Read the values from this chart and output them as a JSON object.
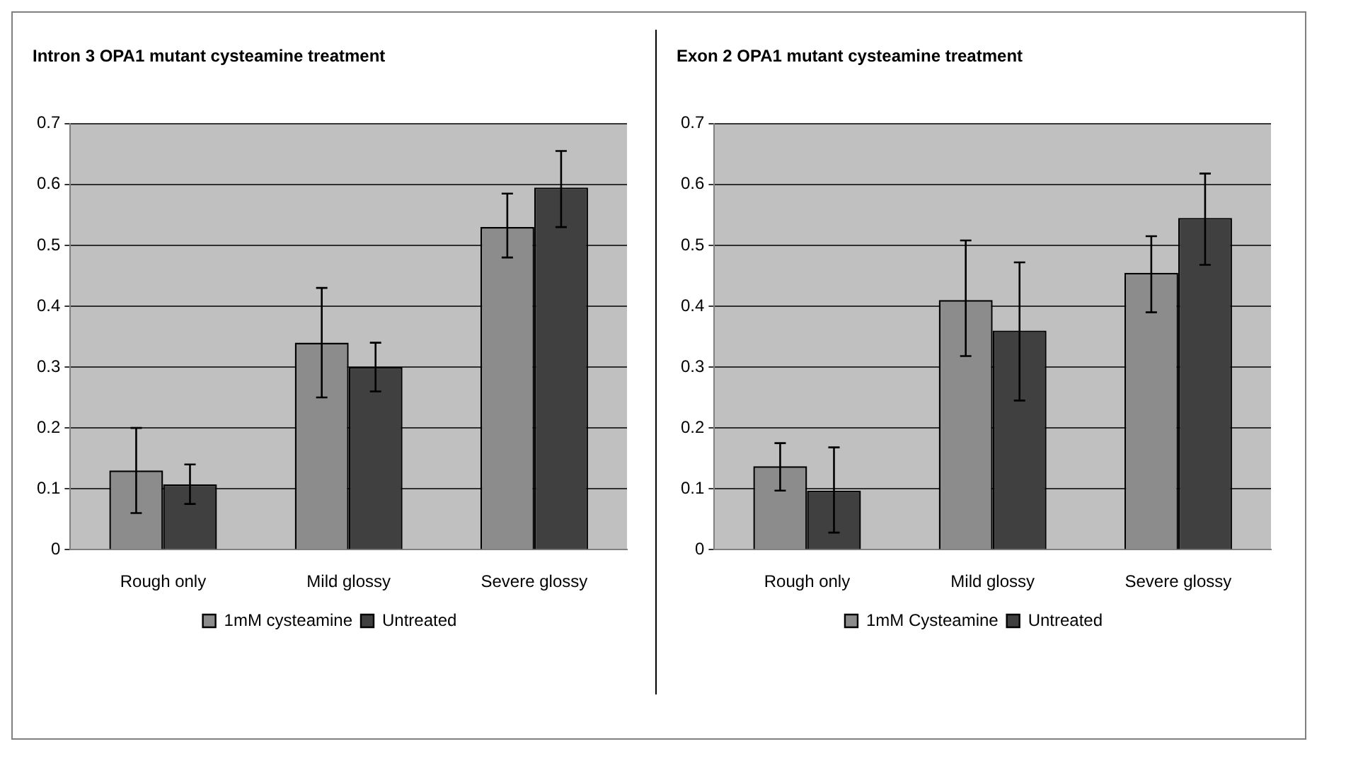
{
  "chart_data": [
    {
      "type": "bar",
      "title": "Intron 3 OPA1 mutant cysteamine treatment",
      "categories": [
        "Rough only",
        "Mild glossy",
        "Severe glossy"
      ],
      "series": [
        {
          "name": "1mM cysteamine",
          "color": "#8c8c8c",
          "values": [
            0.13,
            0.34,
            0.53
          ],
          "errors": [
            [
              0.06,
              0.2
            ],
            [
              0.25,
              0.43
            ],
            [
              0.48,
              0.585
            ]
          ]
        },
        {
          "name": "Untreated",
          "color": "#404040",
          "values": [
            0.107,
            0.3,
            0.595
          ],
          "errors": [
            [
              0.075,
              0.14
            ],
            [
              0.26,
              0.34
            ],
            [
              0.53,
              0.655
            ]
          ]
        }
      ],
      "ylim": [
        0,
        0.7
      ],
      "yticks": [
        0,
        0.1,
        0.2,
        0.3,
        0.4,
        0.5,
        0.6,
        0.7
      ],
      "grid": "y",
      "legend": "bottom"
    },
    {
      "type": "bar",
      "title": "Exon 2 OPA1 mutant cysteamine treatment",
      "categories": [
        "Rough only",
        "Mild glossy",
        "Severe glossy"
      ],
      "series": [
        {
          "name": "1mM Cysteamine",
          "color": "#8c8c8c",
          "values": [
            0.137,
            0.41,
            0.455
          ],
          "errors": [
            [
              0.097,
              0.175
            ],
            [
              0.318,
              0.508
            ],
            [
              0.39,
              0.515
            ]
          ]
        },
        {
          "name": "Untreated",
          "color": "#404040",
          "values": [
            0.097,
            0.36,
            0.545
          ],
          "errors": [
            [
              0.028,
              0.168
            ],
            [
              0.245,
              0.472
            ],
            [
              0.468,
              0.618
            ]
          ]
        }
      ],
      "ylim": [
        0,
        0.7
      ],
      "yticks": [
        0,
        0.1,
        0.2,
        0.3,
        0.4,
        0.5,
        0.6,
        0.7
      ],
      "grid": "y",
      "legend": "bottom"
    }
  ]
}
